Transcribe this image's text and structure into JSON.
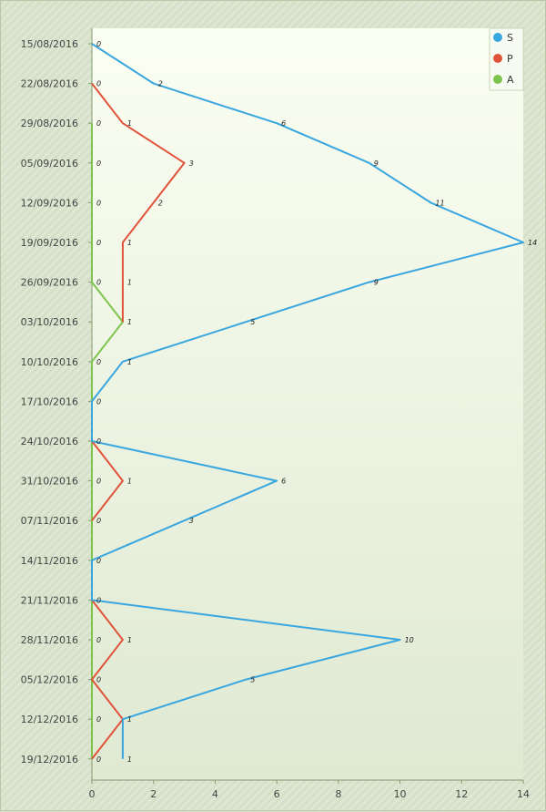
{
  "chart_data": {
    "type": "line",
    "orientation": "horizontal",
    "categories": [
      "15/08/2016",
      "22/08/2016",
      "29/08/2016",
      "05/09/2016",
      "12/09/2016",
      "19/09/2016",
      "26/09/2016",
      "03/10/2016",
      "10/10/2016",
      "17/10/2016",
      "24/10/2016",
      "31/10/2016",
      "07/11/2016",
      "14/11/2016",
      "21/11/2016",
      "28/11/2016",
      "05/12/2016",
      "12/12/2016",
      "19/12/2016"
    ],
    "x_ticks": [
      "0",
      "2",
      "4",
      "6",
      "8",
      "10",
      "12",
      "14"
    ],
    "xlim": [
      0,
      14
    ],
    "grid": false,
    "legend_position": "top-right",
    "series": [
      {
        "name": "S",
        "color": "#3aa6e0",
        "values": [
          0,
          2,
          6,
          9,
          11,
          14,
          9,
          5,
          1,
          0,
          0,
          6,
          3,
          0,
          0,
          10,
          5,
          1,
          1
        ]
      },
      {
        "name": "P",
        "color": "#e0533a",
        "values": [
          null,
          0,
          1,
          3,
          2,
          1,
          1,
          1,
          null,
          null,
          0,
          1,
          0,
          null,
          0,
          1,
          0,
          1,
          0
        ]
      },
      {
        "name": "A",
        "color": "#7cc44e",
        "values": [
          null,
          null,
          0,
          0,
          0,
          0,
          0,
          1,
          0,
          0,
          0,
          0,
          0,
          0,
          0,
          0,
          0,
          0,
          0
        ]
      }
    ],
    "data_labels": [
      {
        "cat": 0,
        "value": "0"
      },
      {
        "cat": 1,
        "value": "0"
      },
      {
        "cat": 2,
        "value": "0"
      },
      {
        "cat": 3,
        "value": "0"
      },
      {
        "cat": 4,
        "value": "0"
      },
      {
        "cat": 5,
        "value": "0"
      },
      {
        "cat": 6,
        "value": "0"
      },
      {
        "cat": 7,
        "value": "1"
      },
      {
        "cat": 8,
        "value": "0"
      },
      {
        "cat": 9,
        "value": "0"
      },
      {
        "cat": 10,
        "value": "0"
      },
      {
        "cat": 11,
        "value": "0"
      },
      {
        "cat": 12,
        "value": "0"
      },
      {
        "cat": 13,
        "value": "0"
      },
      {
        "cat": 14,
        "value": "0"
      },
      {
        "cat": 15,
        "value": "0"
      },
      {
        "cat": 16,
        "value": "0"
      },
      {
        "cat": 17,
        "value": "0"
      },
      {
        "cat": 18,
        "value": "0"
      },
      {
        "cat": 1,
        "value": "2"
      },
      {
        "cat": 2,
        "value": "6"
      },
      {
        "cat": 3,
        "value": "9"
      },
      {
        "cat": 4,
        "value": "11"
      },
      {
        "cat": 5,
        "value": "14"
      },
      {
        "cat": 6,
        "value": "9"
      },
      {
        "cat": 7,
        "value": "5"
      },
      {
        "cat": 8,
        "value": "1"
      },
      {
        "cat": 11,
        "value": "6"
      },
      {
        "cat": 12,
        "value": "3"
      },
      {
        "cat": 15,
        "value": "10"
      },
      {
        "cat": 16,
        "value": "5"
      },
      {
        "cat": 17,
        "value": "1"
      },
      {
        "cat": 18,
        "value": "1"
      },
      {
        "cat": 2,
        "value": "1"
      },
      {
        "cat": 3,
        "value": "3"
      },
      {
        "cat": 4,
        "value": "2"
      },
      {
        "cat": 5,
        "value": "1"
      },
      {
        "cat": 6,
        "value": "1"
      },
      {
        "cat": 11,
        "value": "1"
      },
      {
        "cat": 15,
        "value": "1"
      }
    ]
  }
}
